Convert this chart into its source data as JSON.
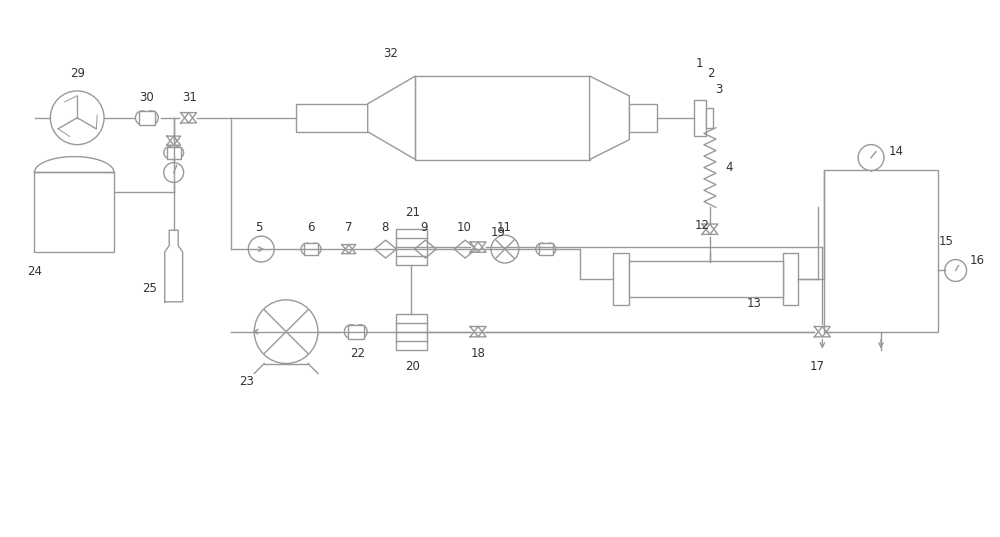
{
  "bg_color": "#ffffff",
  "lc": "#999999",
  "lw": 1.0,
  "fs": 8.5,
  "tc": "#333333"
}
